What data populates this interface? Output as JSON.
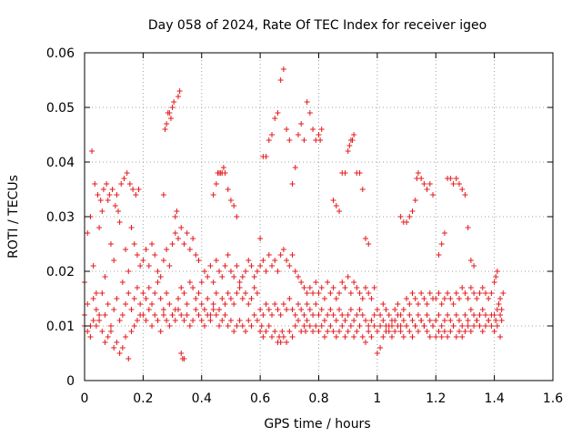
{
  "chart_data": {
    "type": "scatter",
    "title": "Day 058 of 2024, Rate Of TEC Index for receiver igeo",
    "xlabel": "GPS time / hours",
    "ylabel": "ROTI / TECUs",
    "xlim": [
      0,
      1.6
    ],
    "ylim": [
      0,
      0.06
    ],
    "x_ticks": [
      0,
      0.2,
      0.4,
      0.6,
      0.8,
      1,
      1.2,
      1.4,
      1.6
    ],
    "x_tick_labels": [
      "0",
      "0.2",
      "0.4",
      "0.6",
      "0.8",
      "1",
      "1.2",
      "1.4",
      "1.6"
    ],
    "y_ticks": [
      0,
      0.01,
      0.02,
      0.03,
      0.04,
      0.05,
      0.06
    ],
    "y_tick_labels": [
      "0",
      "0.01",
      "0.02",
      "0.03",
      "0.04",
      "0.05",
      "0.06"
    ],
    "grid": true,
    "marker": "+",
    "marker_color": "#e41a1c",
    "series": [
      {
        "name": "ROTI",
        "x": [
          0.0,
          0.01,
          0.02,
          0.03,
          0.04,
          0.05,
          0.06,
          0.07,
          0.08,
          0.09,
          0.1,
          0.11,
          0.12,
          0.13,
          0.14,
          0.15,
          0.16,
          0.17,
          0.18,
          0.19,
          0.0,
          0.01,
          0.02,
          0.03,
          0.04,
          0.05,
          0.06,
          0.07,
          0.08,
          0.09,
          0.1,
          0.11,
          0.12,
          0.13,
          0.14,
          0.15,
          0.16,
          0.17,
          0.18,
          0.19,
          0.0,
          0.01,
          0.02,
          0.03,
          0.04,
          0.05,
          0.06,
          0.07,
          0.08,
          0.09,
          0.1,
          0.11,
          0.12,
          0.13,
          0.14,
          0.15,
          0.16,
          0.17,
          0.18,
          0.19,
          0.025,
          0.035,
          0.045,
          0.055,
          0.065,
          0.075,
          0.085,
          0.095,
          0.105,
          0.115,
          0.125,
          0.135,
          0.145,
          0.155,
          0.165,
          0.175,
          0.185,
          0.2,
          0.21,
          0.22,
          0.23,
          0.24,
          0.25,
          0.26,
          0.27,
          0.28,
          0.29,
          0.3,
          0.31,
          0.32,
          0.33,
          0.34,
          0.35,
          0.36,
          0.37,
          0.38,
          0.39,
          0.2,
          0.21,
          0.22,
          0.23,
          0.24,
          0.25,
          0.26,
          0.27,
          0.28,
          0.29,
          0.3,
          0.31,
          0.32,
          0.33,
          0.34,
          0.35,
          0.36,
          0.37,
          0.38,
          0.39,
          0.2,
          0.21,
          0.22,
          0.23,
          0.24,
          0.25,
          0.26,
          0.27,
          0.28,
          0.29,
          0.3,
          0.31,
          0.32,
          0.33,
          0.34,
          0.35,
          0.36,
          0.37,
          0.38,
          0.39,
          0.27,
          0.275,
          0.28,
          0.285,
          0.29,
          0.295,
          0.3,
          0.305,
          0.31,
          0.315,
          0.32,
          0.325,
          0.33,
          0.335,
          0.34,
          0.4,
          0.41,
          0.42,
          0.43,
          0.44,
          0.45,
          0.46,
          0.47,
          0.48,
          0.49,
          0.5,
          0.51,
          0.52,
          0.53,
          0.54,
          0.55,
          0.56,
          0.57,
          0.58,
          0.59,
          0.4,
          0.41,
          0.42,
          0.43,
          0.44,
          0.45,
          0.46,
          0.47,
          0.48,
          0.49,
          0.5,
          0.51,
          0.52,
          0.53,
          0.54,
          0.55,
          0.56,
          0.57,
          0.58,
          0.59,
          0.4,
          0.41,
          0.42,
          0.43,
          0.44,
          0.45,
          0.46,
          0.47,
          0.48,
          0.49,
          0.5,
          0.51,
          0.52,
          0.53,
          0.54,
          0.55,
          0.56,
          0.57,
          0.58,
          0.59,
          0.44,
          0.45,
          0.455,
          0.46,
          0.465,
          0.47,
          0.475,
          0.48,
          0.49,
          0.5,
          0.51,
          0.52,
          0.6,
          0.61,
          0.62,
          0.63,
          0.64,
          0.65,
          0.66,
          0.67,
          0.68,
          0.69,
          0.7,
          0.71,
          0.72,
          0.73,
          0.74,
          0.75,
          0.76,
          0.77,
          0.78,
          0.79,
          0.6,
          0.61,
          0.62,
          0.63,
          0.64,
          0.65,
          0.66,
          0.67,
          0.68,
          0.69,
          0.7,
          0.71,
          0.72,
          0.73,
          0.74,
          0.75,
          0.76,
          0.77,
          0.78,
          0.79,
          0.6,
          0.61,
          0.62,
          0.63,
          0.64,
          0.65,
          0.66,
          0.67,
          0.68,
          0.69,
          0.7,
          0.71,
          0.72,
          0.73,
          0.74,
          0.75,
          0.76,
          0.77,
          0.78,
          0.79,
          0.6,
          0.605,
          0.61,
          0.62,
          0.63,
          0.64,
          0.65,
          0.66,
          0.665,
          0.67,
          0.675,
          0.68,
          0.69,
          0.7,
          0.71,
          0.72,
          0.73,
          0.74,
          0.75,
          0.755,
          0.76,
          0.77,
          0.78,
          0.79,
          0.8,
          0.81,
          0.82,
          0.83,
          0.84,
          0.85,
          0.86,
          0.87,
          0.88,
          0.89,
          0.9,
          0.91,
          0.92,
          0.93,
          0.94,
          0.95,
          0.96,
          0.97,
          0.98,
          0.99,
          0.8,
          0.81,
          0.82,
          0.83,
          0.84,
          0.85,
          0.86,
          0.87,
          0.88,
          0.89,
          0.9,
          0.91,
          0.92,
          0.93,
          0.94,
          0.95,
          0.96,
          0.97,
          0.98,
          0.99,
          0.8,
          0.81,
          0.82,
          0.83,
          0.84,
          0.85,
          0.86,
          0.87,
          0.88,
          0.89,
          0.9,
          0.91,
          0.92,
          0.93,
          0.94,
          0.95,
          0.96,
          0.97,
          0.98,
          0.99,
          0.8,
          0.805,
          0.81,
          0.85,
          0.86,
          0.87,
          0.88,
          0.89,
          0.9,
          0.905,
          0.91,
          0.915,
          0.92,
          0.93,
          0.94,
          0.95,
          0.96,
          0.97,
          1.0,
          1.01,
          1.02,
          1.03,
          1.04,
          1.05,
          1.06,
          1.07,
          1.08,
          1.09,
          1.1,
          1.11,
          1.12,
          1.13,
          1.14,
          1.15,
          1.16,
          1.17,
          1.18,
          1.19,
          1.0,
          1.01,
          1.02,
          1.03,
          1.04,
          1.05,
          1.06,
          1.07,
          1.08,
          1.09,
          1.1,
          1.11,
          1.12,
          1.13,
          1.14,
          1.15,
          1.16,
          1.17,
          1.18,
          1.19,
          1.0,
          1.01,
          1.02,
          1.03,
          1.04,
          1.05,
          1.06,
          1.07,
          1.08,
          1.09,
          1.1,
          1.11,
          1.12,
          1.13,
          1.14,
          1.15,
          1.16,
          1.17,
          1.18,
          1.19,
          1.08,
          1.09,
          1.1,
          1.11,
          1.12,
          1.13,
          1.135,
          1.14,
          1.15,
          1.16,
          1.17,
          1.18,
          1.19,
          1.2,
          1.21,
          1.22,
          1.23,
          1.24,
          1.25,
          1.26,
          1.27,
          1.28,
          1.29,
          1.3,
          1.31,
          1.32,
          1.33,
          1.34,
          1.35,
          1.36,
          1.37,
          1.38,
          1.39,
          1.2,
          1.21,
          1.22,
          1.23,
          1.24,
          1.25,
          1.26,
          1.27,
          1.28,
          1.29,
          1.3,
          1.31,
          1.32,
          1.33,
          1.34,
          1.35,
          1.36,
          1.37,
          1.38,
          1.39,
          1.2,
          1.21,
          1.22,
          1.23,
          1.24,
          1.25,
          1.26,
          1.27,
          1.28,
          1.29,
          1.3,
          1.31,
          1.32,
          1.33,
          1.34,
          1.35,
          1.36,
          1.37,
          1.38,
          1.39,
          1.21,
          1.22,
          1.23,
          1.24,
          1.25,
          1.26,
          1.27,
          1.28,
          1.29,
          1.3,
          1.31,
          1.32,
          1.33,
          1.4,
          1.405,
          1.41,
          1.415,
          1.42,
          1.425,
          1.4,
          1.405,
          1.41,
          1.415,
          1.42,
          1.425,
          1.4,
          1.41,
          1.42,
          1.43
        ],
        "y": [
          0.018,
          0.027,
          0.03,
          0.021,
          0.016,
          0.028,
          0.031,
          0.019,
          0.033,
          0.025,
          0.022,
          0.034,
          0.029,
          0.018,
          0.024,
          0.02,
          0.028,
          0.025,
          0.023,
          0.021,
          0.012,
          0.014,
          0.01,
          0.015,
          0.013,
          0.011,
          0.016,
          0.012,
          0.014,
          0.009,
          0.013,
          0.015,
          0.011,
          0.012,
          0.014,
          0.016,
          0.013,
          0.015,
          0.017,
          0.014,
          0.01,
          0.009,
          0.008,
          0.011,
          0.01,
          0.012,
          0.009,
          0.007,
          0.008,
          0.01,
          0.006,
          0.007,
          0.005,
          0.006,
          0.008,
          0.004,
          0.009,
          0.01,
          0.011,
          0.012,
          0.042,
          0.036,
          0.034,
          0.033,
          0.035,
          0.036,
          0.034,
          0.035,
          0.032,
          0.031,
          0.036,
          0.037,
          0.038,
          0.036,
          0.035,
          0.034,
          0.035,
          0.022,
          0.024,
          0.021,
          0.025,
          0.023,
          0.02,
          0.019,
          0.022,
          0.024,
          0.021,
          0.025,
          0.027,
          0.026,
          0.028,
          0.025,
          0.027,
          0.024,
          0.026,
          0.023,
          0.022,
          0.016,
          0.015,
          0.017,
          0.014,
          0.016,
          0.018,
          0.015,
          0.013,
          0.016,
          0.014,
          0.012,
          0.013,
          0.015,
          0.017,
          0.016,
          0.014,
          0.018,
          0.017,
          0.015,
          0.016,
          0.012,
          0.011,
          0.013,
          0.01,
          0.012,
          0.011,
          0.009,
          0.012,
          0.011,
          0.01,
          0.012,
          0.011,
          0.013,
          0.012,
          0.011,
          0.012,
          0.01,
          0.011,
          0.013,
          0.012,
          0.034,
          0.046,
          0.047,
          0.049,
          0.049,
          0.048,
          0.05,
          0.051,
          0.03,
          0.031,
          0.052,
          0.053,
          0.005,
          0.004,
          0.004,
          0.018,
          0.02,
          0.019,
          0.021,
          0.018,
          0.022,
          0.02,
          0.019,
          0.021,
          0.023,
          0.02,
          0.019,
          0.021,
          0.018,
          0.019,
          0.02,
          0.022,
          0.021,
          0.019,
          0.02,
          0.014,
          0.013,
          0.015,
          0.012,
          0.014,
          0.016,
          0.013,
          0.015,
          0.014,
          0.016,
          0.015,
          0.014,
          0.016,
          0.017,
          0.015,
          0.016,
          0.014,
          0.015,
          0.017,
          0.016,
          0.011,
          0.01,
          0.012,
          0.011,
          0.013,
          0.012,
          0.01,
          0.011,
          0.012,
          0.01,
          0.011,
          0.009,
          0.01,
          0.011,
          0.01,
          0.009,
          0.011,
          0.01,
          0.012,
          0.011,
          0.034,
          0.036,
          0.038,
          0.038,
          0.038,
          0.038,
          0.039,
          0.038,
          0.035,
          0.033,
          0.032,
          0.03,
          0.026,
          0.041,
          0.041,
          0.044,
          0.045,
          0.048,
          0.049,
          0.055,
          0.057,
          0.046,
          0.044,
          0.036,
          0.039,
          0.045,
          0.047,
          0.044,
          0.051,
          0.049,
          0.046,
          0.044,
          0.021,
          0.022,
          0.02,
          0.023,
          0.021,
          0.022,
          0.02,
          0.023,
          0.024,
          0.022,
          0.021,
          0.023,
          0.02,
          0.019,
          0.018,
          0.017,
          0.016,
          0.017,
          0.016,
          0.018,
          0.013,
          0.012,
          0.014,
          0.013,
          0.012,
          0.014,
          0.013,
          0.012,
          0.014,
          0.013,
          0.015,
          0.013,
          0.012,
          0.014,
          0.013,
          0.012,
          0.014,
          0.013,
          0.012,
          0.014,
          0.009,
          0.01,
          0.008,
          0.009,
          0.01,
          0.008,
          0.009,
          0.007,
          0.008,
          0.007,
          0.009,
          0.008,
          0.007,
          0.009,
          0.008,
          0.01,
          0.011,
          0.009,
          0.01,
          0.009,
          0.011,
          0.01,
          0.009,
          0.01,
          0.016,
          0.017,
          0.015,
          0.018,
          0.016,
          0.017,
          0.015,
          0.016,
          0.018,
          0.017,
          0.019,
          0.016,
          0.018,
          0.017,
          0.016,
          0.015,
          0.017,
          0.016,
          0.015,
          0.017,
          0.012,
          0.013,
          0.011,
          0.012,
          0.013,
          0.012,
          0.011,
          0.013,
          0.012,
          0.011,
          0.012,
          0.013,
          0.011,
          0.012,
          0.013,
          0.012,
          0.011,
          0.01,
          0.011,
          0.012,
          0.009,
          0.01,
          0.008,
          0.009,
          0.01,
          0.009,
          0.008,
          0.009,
          0.01,
          0.008,
          0.009,
          0.01,
          0.008,
          0.009,
          0.01,
          0.008,
          0.007,
          0.009,
          0.008,
          0.01,
          0.045,
          0.044,
          0.046,
          0.033,
          0.032,
          0.031,
          0.038,
          0.038,
          0.042,
          0.043,
          0.044,
          0.044,
          0.045,
          0.038,
          0.038,
          0.035,
          0.026,
          0.025,
          0.013,
          0.012,
          0.014,
          0.013,
          0.012,
          0.011,
          0.013,
          0.014,
          0.012,
          0.013,
          0.015,
          0.014,
          0.016,
          0.015,
          0.014,
          0.016,
          0.015,
          0.014,
          0.016,
          0.015,
          0.009,
          0.01,
          0.011,
          0.01,
          0.009,
          0.01,
          0.011,
          0.012,
          0.01,
          0.011,
          0.01,
          0.012,
          0.011,
          0.01,
          0.012,
          0.011,
          0.01,
          0.012,
          0.011,
          0.01,
          0.005,
          0.006,
          0.008,
          0.009,
          0.01,
          0.008,
          0.009,
          0.01,
          0.009,
          0.008,
          0.01,
          0.009,
          0.008,
          0.01,
          0.009,
          0.011,
          0.01,
          0.009,
          0.008,
          0.01,
          0.03,
          0.029,
          0.029,
          0.03,
          0.031,
          0.033,
          0.037,
          0.038,
          0.037,
          0.036,
          0.035,
          0.036,
          0.034,
          0.015,
          0.016,
          0.014,
          0.015,
          0.016,
          0.015,
          0.014,
          0.016,
          0.015,
          0.017,
          0.016,
          0.015,
          0.017,
          0.016,
          0.015,
          0.016,
          0.017,
          0.016,
          0.015,
          0.016,
          0.011,
          0.012,
          0.01,
          0.011,
          0.012,
          0.011,
          0.01,
          0.012,
          0.011,
          0.01,
          0.012,
          0.011,
          0.013,
          0.012,
          0.011,
          0.012,
          0.013,
          0.012,
          0.011,
          0.012,
          0.008,
          0.009,
          0.008,
          0.009,
          0.008,
          0.009,
          0.01,
          0.008,
          0.009,
          0.008,
          0.009,
          0.01,
          0.009,
          0.01,
          0.011,
          0.01,
          0.009,
          0.01,
          0.011,
          0.01,
          0.023,
          0.025,
          0.027,
          0.037,
          0.037,
          0.036,
          0.037,
          0.036,
          0.035,
          0.034,
          0.028,
          0.022,
          0.021,
          0.018,
          0.019,
          0.02,
          0.014,
          0.015,
          0.013,
          0.012,
          0.011,
          0.013,
          0.014,
          0.012,
          0.011,
          0.009,
          0.01,
          0.008,
          0.016
        ]
      }
    ]
  }
}
